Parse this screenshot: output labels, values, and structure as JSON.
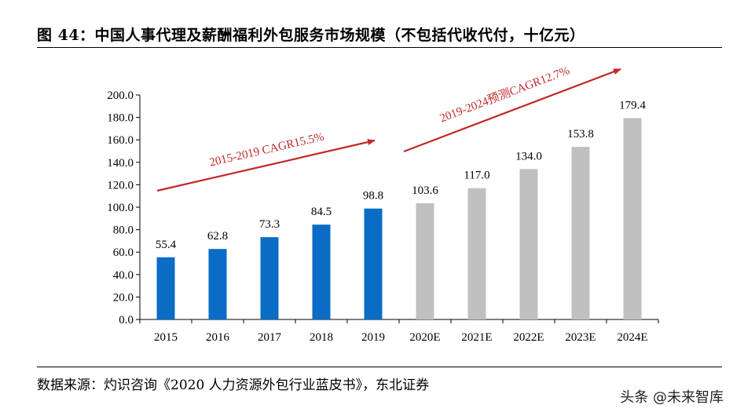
{
  "figure": {
    "title": "图 44：中国人事代理及薪酬福利外包服务市场规模（不包括代收代付，十亿元）",
    "source": "数据来源：灼识咨询《2020 人力资源外包行业蓝皮书》，东北证券",
    "watermark": "头条 @未来智库"
  },
  "colors": {
    "actual": "#0a6cc4",
    "forecast": "#c0c0c0",
    "arrow": "#c0282a"
  },
  "chart_data": {
    "type": "bar",
    "title": "",
    "xlabel": "",
    "ylabel": "",
    "categories": [
      "2015",
      "2016",
      "2017",
      "2018",
      "2019",
      "2020E",
      "2021E",
      "2022E",
      "2023E",
      "2024E"
    ],
    "values": [
      55.4,
      62.8,
      73.3,
      84.5,
      98.8,
      103.6,
      117.0,
      134.0,
      153.8,
      179.4
    ],
    "value_labels": [
      "55.4",
      "62.8",
      "73.3",
      "84.5",
      "98.8",
      "103.6",
      "117.0",
      "134.0",
      "153.8",
      "179.4"
    ],
    "forecast": [
      false,
      false,
      false,
      false,
      false,
      true,
      true,
      true,
      true,
      true
    ],
    "ylim": [
      0,
      200
    ],
    "yticks": [
      "0.0",
      "20.0",
      "40.0",
      "60.0",
      "80.0",
      "100.0",
      "120.0",
      "140.0",
      "160.0",
      "180.0",
      "200.0"
    ],
    "grid": false,
    "legend": "none",
    "annotations": [
      {
        "text": "2015-2019 CAGR15.5%",
        "from_category": "2015",
        "to_category": "2019"
      },
      {
        "text": "2019-2024预测CAGR12.7%",
        "from_category": "2019",
        "to_category": "2024E"
      }
    ]
  }
}
